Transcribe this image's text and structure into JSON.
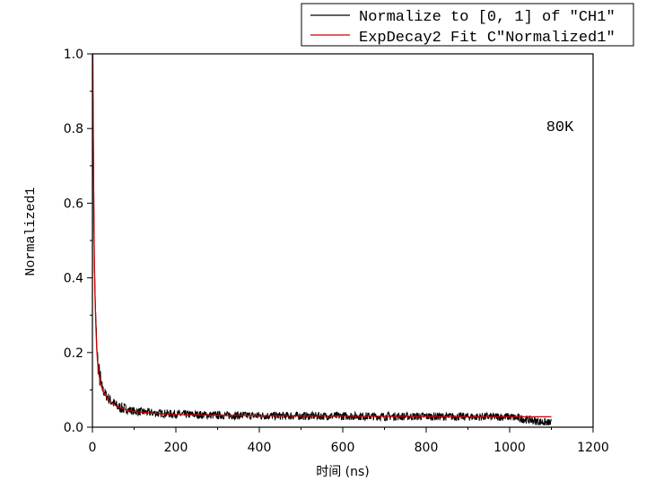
{
  "chart_data": {
    "type": "line",
    "title": "",
    "xlabel": "时间 (ns)",
    "ylabel": "Normalized1",
    "xlim": [
      0,
      1200
    ],
    "ylim": [
      0,
      1
    ],
    "x_ticks": [
      "0",
      "200",
      "400",
      "600",
      "800",
      "1000",
      "1200"
    ],
    "y_ticks": [
      "0.0",
      "0.2",
      "0.4",
      "0.6",
      "0.8",
      "1.0"
    ],
    "annotation": "80K",
    "legend_position": "top-right",
    "series": [
      {
        "name": "Normalize to [0, 1] of \"CH1\"",
        "color": "#000000",
        "x": [
          0,
          1,
          2,
          3,
          4,
          5,
          6,
          8,
          10,
          12,
          15,
          20,
          25,
          30,
          40,
          50,
          60,
          80,
          100,
          150,
          200,
          300,
          400,
          500,
          600,
          700,
          800,
          900,
          1000,
          1100
        ],
        "y": [
          0.3,
          1.0,
          0.82,
          0.65,
          0.52,
          0.42,
          0.36,
          0.29,
          0.23,
          0.19,
          0.15,
          0.12,
          0.1,
          0.09,
          0.075,
          0.065,
          0.055,
          0.048,
          0.043,
          0.038,
          0.035,
          0.032,
          0.031,
          0.03,
          0.03,
          0.029,
          0.029,
          0.028,
          0.028,
          0.01
        ]
      },
      {
        "name": "ExpDecay2 Fit C\"Normalized1\"",
        "color": "#cc0000",
        "x": [
          1,
          2,
          3,
          4,
          5,
          6,
          8,
          10,
          12,
          15,
          20,
          25,
          30,
          40,
          50,
          60,
          80,
          100,
          150,
          200,
          300,
          400,
          500,
          600,
          700,
          800,
          900,
          1000,
          1100
        ],
        "y": [
          1.0,
          0.8,
          0.64,
          0.52,
          0.43,
          0.36,
          0.28,
          0.22,
          0.18,
          0.145,
          0.115,
          0.098,
          0.087,
          0.072,
          0.062,
          0.055,
          0.047,
          0.042,
          0.037,
          0.034,
          0.032,
          0.031,
          0.03,
          0.03,
          0.029,
          0.029,
          0.028,
          0.028,
          0.028
        ]
      }
    ]
  }
}
